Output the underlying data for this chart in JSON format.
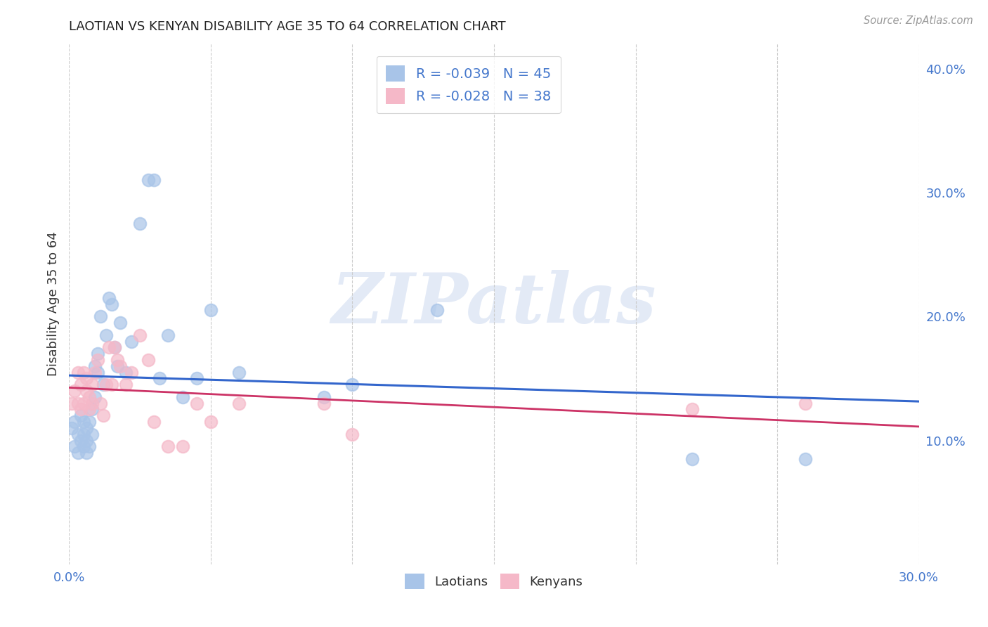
{
  "title": "LAOTIAN VS KENYAN DISABILITY AGE 35 TO 64 CORRELATION CHART",
  "source": "Source: ZipAtlas.com",
  "ylabel": "Disability Age 35 to 64",
  "watermark": "ZIPatlas",
  "xlim": [
    0.0,
    0.3
  ],
  "ylim": [
    0.0,
    0.42
  ],
  "ytick_labels_right": [
    "10.0%",
    "20.0%",
    "30.0%",
    "40.0%"
  ],
  "yticks_right": [
    0.1,
    0.2,
    0.3,
    0.4
  ],
  "xtick_positions": [
    0.0,
    0.05,
    0.1,
    0.15,
    0.2,
    0.25,
    0.3
  ],
  "xtick_labels": [
    "0.0%",
    "",
    "",
    "",
    "",
    "",
    "30.0%"
  ],
  "blue_color": "#a8c4e8",
  "pink_color": "#f5b8c8",
  "blue_line_color": "#3366cc",
  "pink_line_color": "#cc3366",
  "legend_text_color": "#4477cc",
  "grid_color": "#cccccc",
  "title_color": "#222222",
  "background_color": "#ffffff",
  "laotian_x": [
    0.001,
    0.002,
    0.002,
    0.003,
    0.003,
    0.004,
    0.004,
    0.005,
    0.005,
    0.005,
    0.006,
    0.006,
    0.006,
    0.007,
    0.007,
    0.008,
    0.008,
    0.009,
    0.009,
    0.01,
    0.01,
    0.011,
    0.012,
    0.013,
    0.014,
    0.015,
    0.016,
    0.017,
    0.018,
    0.02,
    0.022,
    0.025,
    0.028,
    0.03,
    0.032,
    0.035,
    0.04,
    0.045,
    0.05,
    0.06,
    0.09,
    0.1,
    0.13,
    0.22,
    0.26
  ],
  "laotian_y": [
    0.11,
    0.115,
    0.095,
    0.105,
    0.09,
    0.12,
    0.1,
    0.105,
    0.095,
    0.115,
    0.11,
    0.1,
    0.09,
    0.115,
    0.095,
    0.125,
    0.105,
    0.16,
    0.135,
    0.17,
    0.155,
    0.2,
    0.145,
    0.185,
    0.215,
    0.21,
    0.175,
    0.16,
    0.195,
    0.155,
    0.18,
    0.275,
    0.31,
    0.31,
    0.15,
    0.185,
    0.135,
    0.15,
    0.205,
    0.155,
    0.135,
    0.145,
    0.205,
    0.085,
    0.085
  ],
  "kenyan_x": [
    0.001,
    0.002,
    0.003,
    0.003,
    0.004,
    0.004,
    0.005,
    0.005,
    0.006,
    0.006,
    0.007,
    0.007,
    0.008,
    0.008,
    0.009,
    0.01,
    0.011,
    0.012,
    0.013,
    0.014,
    0.015,
    0.016,
    0.017,
    0.018,
    0.02,
    0.022,
    0.025,
    0.028,
    0.03,
    0.035,
    0.04,
    0.045,
    0.05,
    0.06,
    0.09,
    0.1,
    0.22,
    0.26
  ],
  "kenyan_y": [
    0.13,
    0.14,
    0.155,
    0.13,
    0.145,
    0.125,
    0.155,
    0.13,
    0.15,
    0.14,
    0.135,
    0.125,
    0.145,
    0.13,
    0.155,
    0.165,
    0.13,
    0.12,
    0.145,
    0.175,
    0.145,
    0.175,
    0.165,
    0.16,
    0.145,
    0.155,
    0.185,
    0.165,
    0.115,
    0.095,
    0.095,
    0.13,
    0.115,
    0.13,
    0.13,
    0.105,
    0.125,
    0.13
  ]
}
